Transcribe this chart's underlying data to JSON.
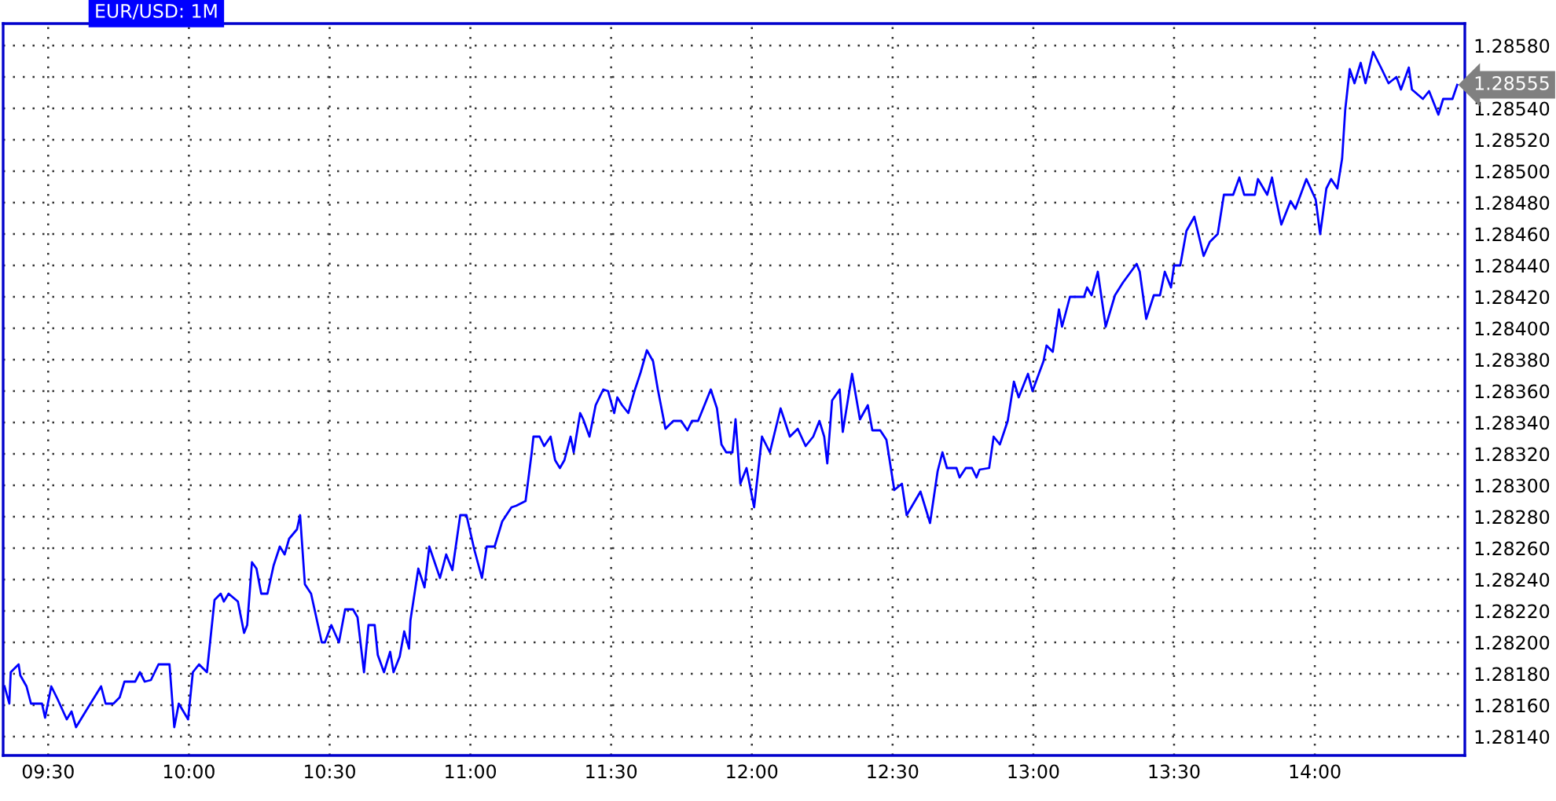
{
  "chart_data": {
    "type": "line",
    "title": "EUR/USD: 1M",
    "xlim": [
      9.34,
      14.533
    ],
    "xticks": [
      {
        "value": 9.5,
        "label": "09:30"
      },
      {
        "value": 10,
        "label": "10:00"
      },
      {
        "value": 10.5,
        "label": "10:30"
      },
      {
        "value": 11,
        "label": "11:00"
      },
      {
        "value": 11.5,
        "label": "11:30"
      },
      {
        "value": 12,
        "label": "12:00"
      },
      {
        "value": 12.5,
        "label": "12:30"
      },
      {
        "value": 13,
        "label": "13:00"
      },
      {
        "value": 13.5,
        "label": "13:30"
      },
      {
        "value": 14,
        "label": "14:00"
      }
    ],
    "ylim": [
      1.28128,
      1.28594
    ],
    "yticks": [
      {
        "value": 1.2814,
        "label": "1.28140"
      },
      {
        "value": 1.2816,
        "label": "1.28160"
      },
      {
        "value": 1.2818,
        "label": "1.28180"
      },
      {
        "value": 1.282,
        "label": "1.28200"
      },
      {
        "value": 1.2822,
        "label": "1.28220"
      },
      {
        "value": 1.2824,
        "label": "1.28240"
      },
      {
        "value": 1.2826,
        "label": "1.28260"
      },
      {
        "value": 1.2828,
        "label": "1.28280"
      },
      {
        "value": 1.283,
        "label": "1.28300"
      },
      {
        "value": 1.2832,
        "label": "1.28320"
      },
      {
        "value": 1.2834,
        "label": "1.28340"
      },
      {
        "value": 1.2836,
        "label": "1.28360"
      },
      {
        "value": 1.2838,
        "label": "1.28380"
      },
      {
        "value": 1.284,
        "label": "1.28400"
      },
      {
        "value": 1.2842,
        "label": "1.28420"
      },
      {
        "value": 1.2844,
        "label": "1.28440"
      },
      {
        "value": 1.2846,
        "label": "1.28460"
      },
      {
        "value": 1.2848,
        "label": "1.28480"
      },
      {
        "value": 1.285,
        "label": "1.28500"
      },
      {
        "value": 1.2852,
        "label": "1.28520"
      },
      {
        "value": 1.2854,
        "label": "1.28540"
      },
      {
        "value": 1.2856,
        "label": null
      },
      {
        "value": 1.2858,
        "label": "1.28580"
      }
    ],
    "grid": true,
    "marker": "none",
    "line_style": "solid",
    "annotations": [
      "1.28555"
    ],
    "series": [
      {
        "color": "#0000ff",
        "x": [
          9.345,
          9.362,
          9.367,
          9.395,
          9.401,
          9.423,
          9.439,
          9.478,
          9.489,
          9.511,
          9.533,
          9.566,
          9.583,
          9.599,
          9.633,
          9.688,
          9.704,
          9.732,
          9.754,
          9.771,
          9.809,
          9.826,
          9.843,
          9.865,
          9.892,
          9.931,
          9.948,
          9.964,
          9.997,
          10.014,
          10.036,
          10.064,
          10.091,
          10.113,
          10.124,
          10.141,
          10.174,
          10.196,
          10.207,
          10.224,
          10.24,
          10.257,
          10.279,
          10.301,
          10.323,
          10.34,
          10.356,
          10.384,
          10.395,
          10.412,
          10.434,
          10.472,
          10.483,
          10.506,
          10.533,
          10.555,
          10.583,
          10.599,
          10.622,
          10.638,
          10.66,
          10.671,
          10.693,
          10.715,
          10.727,
          10.749,
          10.765,
          10.782,
          10.787,
          10.815,
          10.837,
          10.854,
          10.892,
          10.914,
          10.936,
          10.964,
          10.986,
          11.014,
          11.041,
          11.058,
          11.086,
          11.113,
          11.146,
          11.163,
          11.196,
          11.218,
          11.224,
          11.246,
          11.262,
          11.285,
          11.301,
          11.318,
          11.334,
          11.356,
          11.367,
          11.39,
          11.401,
          11.423,
          11.445,
          11.472,
          11.489,
          11.511,
          11.522,
          11.539,
          11.561,
          11.583,
          11.605,
          11.627,
          11.649,
          11.666,
          11.693,
          11.721,
          11.749,
          11.771,
          11.787,
          11.809,
          11.854,
          11.876,
          11.892,
          11.909,
          11.931,
          11.942,
          11.959,
          11.981,
          12.008,
          12.036,
          12.064,
          12.102,
          12.135,
          12.163,
          12.191,
          12.218,
          12.24,
          12.257,
          12.268,
          12.285,
          12.312,
          12.323,
          12.356,
          12.384,
          12.412,
          12.428,
          12.456,
          12.478,
          12.506,
          12.533,
          12.55,
          12.599,
          12.633,
          12.66,
          12.677,
          12.693,
          12.727,
          12.738,
          12.76,
          12.782,
          12.798,
          12.809,
          12.843,
          12.859,
          12.881,
          12.909,
          12.931,
          12.948,
          12.981,
          12.997,
          13.036,
          13.047,
          13.069,
          13.091,
          13.102,
          13.13,
          13.18,
          13.191,
          13.207,
          13.229,
          13.257,
          13.29,
          13.318,
          13.367,
          13.378,
          13.401,
          13.428,
          13.45,
          13.467,
          13.489,
          13.5,
          13.522,
          13.544,
          13.572,
          13.605,
          13.627,
          13.655,
          13.677,
          13.71,
          13.732,
          13.749,
          13.787,
          13.798,
          13.831,
          13.848,
          13.859,
          13.881,
          13.914,
          13.931,
          13.97,
          14.003,
          14.019,
          14.041,
          14.058,
          14.08,
          14.097,
          14.108,
          14.124,
          14.141,
          14.163,
          14.18,
          14.207,
          14.235,
          14.262,
          14.29,
          14.306,
          14.334,
          14.345,
          14.384,
          14.406,
          14.439,
          14.456,
          14.489,
          14.506
        ],
        "values": [
          1.28172,
          1.28161,
          1.28181,
          1.28186,
          1.28179,
          1.28172,
          1.28161,
          1.28161,
          1.28152,
          1.28172,
          1.28164,
          1.28151,
          1.28156,
          1.28146,
          1.28156,
          1.28172,
          1.28161,
          1.28161,
          1.28165,
          1.28175,
          1.28175,
          1.28181,
          1.28175,
          1.28176,
          1.28186,
          1.28186,
          1.28146,
          1.28161,
          1.28151,
          1.28181,
          1.28186,
          1.28181,
          1.28227,
          1.28231,
          1.28226,
          1.28231,
          1.28226,
          1.28206,
          1.28211,
          1.28251,
          1.28247,
          1.28231,
          1.28231,
          1.28249,
          1.28261,
          1.28256,
          1.28266,
          1.28272,
          1.28281,
          1.28237,
          1.28231,
          1.282,
          1.282,
          1.28211,
          1.282,
          1.28221,
          1.28221,
          1.28216,
          1.28181,
          1.28211,
          1.28211,
          1.28192,
          1.28181,
          1.28194,
          1.28181,
          1.28191,
          1.28207,
          1.28196,
          1.28214,
          1.28247,
          1.28235,
          1.28261,
          1.28241,
          1.28256,
          1.28246,
          1.28281,
          1.28281,
          1.28259,
          1.28241,
          1.28261,
          1.28261,
          1.28277,
          1.28286,
          1.28287,
          1.2829,
          1.28321,
          1.28331,
          1.28331,
          1.28325,
          1.28331,
          1.28316,
          1.28311,
          1.28316,
          1.28331,
          1.28321,
          1.28346,
          1.28342,
          1.28331,
          1.28351,
          1.28361,
          1.2836,
          1.28346,
          1.28356,
          1.28351,
          1.28346,
          1.2836,
          1.28372,
          1.28386,
          1.28379,
          1.28361,
          1.28336,
          1.28341,
          1.28341,
          1.28335,
          1.28341,
          1.28341,
          1.28361,
          1.28349,
          1.28326,
          1.28321,
          1.28321,
          1.28342,
          1.28301,
          1.28311,
          1.28286,
          1.28331,
          1.28321,
          1.28349,
          1.28331,
          1.28336,
          1.28325,
          1.28331,
          1.28341,
          1.28331,
          1.28314,
          1.28354,
          1.28361,
          1.28334,
          1.28371,
          1.28342,
          1.28351,
          1.28335,
          1.28335,
          1.28329,
          1.28297,
          1.28301,
          1.28281,
          1.28296,
          1.28276,
          1.28309,
          1.28321,
          1.28311,
          1.28311,
          1.28305,
          1.28311,
          1.28311,
          1.28305,
          1.2831,
          1.28311,
          1.28331,
          1.28326,
          1.28341,
          1.28366,
          1.28356,
          1.28371,
          1.2836,
          1.28379,
          1.28389,
          1.28385,
          1.28412,
          1.28401,
          1.2842,
          1.2842,
          1.28426,
          1.28421,
          1.28436,
          1.28401,
          1.28421,
          1.28429,
          1.28441,
          1.28436,
          1.28406,
          1.28421,
          1.28421,
          1.28436,
          1.28426,
          1.2844,
          1.2844,
          1.28462,
          1.28471,
          1.28446,
          1.28455,
          1.2846,
          1.28485,
          1.28485,
          1.28496,
          1.28485,
          1.28485,
          1.28495,
          1.28485,
          1.28496,
          1.28485,
          1.28466,
          1.28481,
          1.28476,
          1.28495,
          1.28482,
          1.2846,
          1.28489,
          1.28495,
          1.28489,
          1.28508,
          1.28539,
          1.28565,
          1.28556,
          1.28569,
          1.28556,
          1.28576,
          1.28566,
          1.28556,
          1.2856,
          1.28552,
          1.28566,
          1.28552,
          1.28546,
          1.28551,
          1.28536,
          1.28546,
          1.28546,
          1.28555
        ]
      }
    ]
  }
}
